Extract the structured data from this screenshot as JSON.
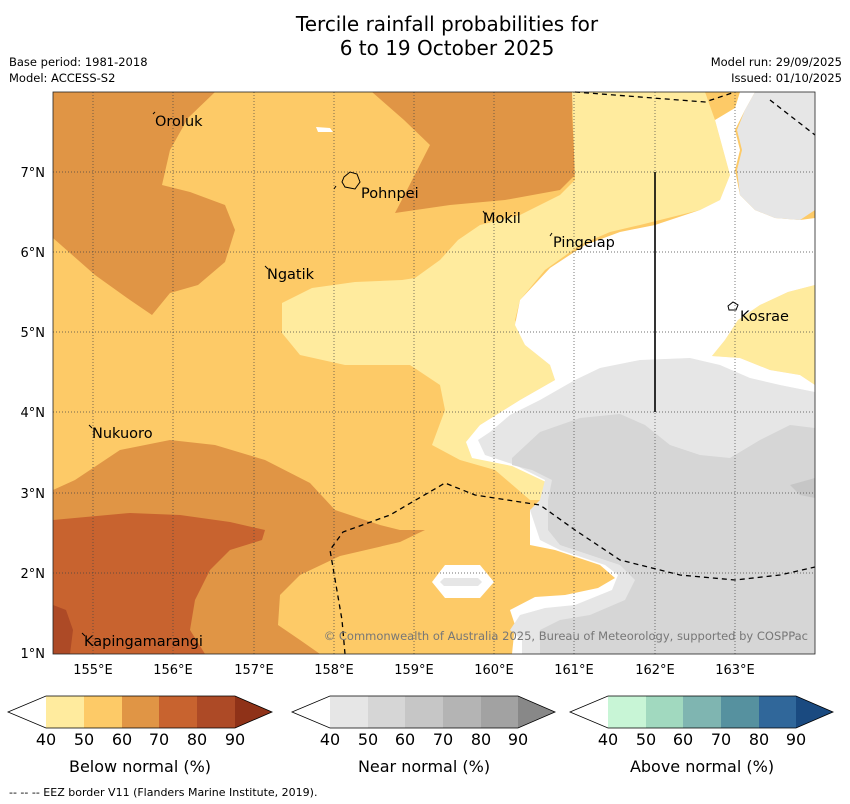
{
  "title": {
    "line1": "Tercile rainfall probabilities for",
    "line2": "6 to 19 October 2025"
  },
  "meta": {
    "base_period": "Base period: 1981-2018",
    "model": "Model: ACCESS-S2",
    "model_run": "Model run: 29/09/2025",
    "issued": "Issued: 01/10/2025"
  },
  "map": {
    "lon_ticks": [
      "155°E",
      "156°E",
      "157°E",
      "158°E",
      "159°E",
      "160°E",
      "161°E",
      "162°E",
      "163°E"
    ],
    "lat_ticks": [
      "7°N",
      "6°N",
      "5°N",
      "4°N",
      "3°N",
      "2°N",
      "1°N"
    ],
    "places": [
      "Oroluk",
      "Pohnpei",
      "Mokil",
      "Pingelap",
      "Ngatik",
      "Kosrae",
      "Nukuoro",
      "Kapingamarangi"
    ],
    "copyright": "© Commonwealth of Australia 2025, Bureau of Meteorology, supported by COSPPac"
  },
  "colorbars": [
    {
      "label": "Below normal (%)",
      "ticks": [
        "40",
        "50",
        "60",
        "70",
        "80",
        "90"
      ],
      "colors": [
        "#ffffff",
        "#ffeb9e",
        "#fdca67",
        "#e09545",
        "#c8632f",
        "#ad4a26",
        "#8f3218"
      ]
    },
    {
      "label": "Near normal (%)",
      "ticks": [
        "40",
        "50",
        "60",
        "70",
        "80",
        "90"
      ],
      "colors": [
        "#ffffff",
        "#e6e6e6",
        "#d6d6d6",
        "#c6c6c6",
        "#b4b4b4",
        "#a2a2a2",
        "#888888"
      ]
    },
    {
      "label": "Above normal (%)",
      "ticks": [
        "40",
        "50",
        "60",
        "70",
        "80",
        "90"
      ],
      "colors": [
        "#ffffff",
        "#c8f5d6",
        "#a1d9bf",
        "#7fb5b1",
        "#56919f",
        "#30679a",
        "#1a4a80"
      ]
    }
  ],
  "footer": "--  --  -- EEZ border V11 (Flanders Marine Institute, 2019)."
}
